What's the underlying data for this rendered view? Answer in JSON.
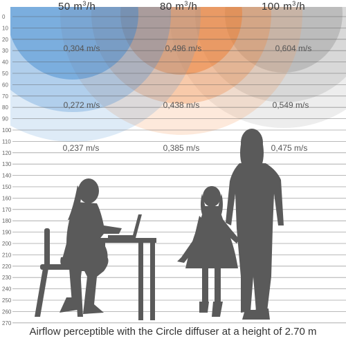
{
  "flow_rates": [
    {
      "value": "50 m",
      "unit_exp": "3",
      "suffix": "/h"
    },
    {
      "value": "80 m",
      "unit_exp": "3",
      "suffix": "/h"
    },
    {
      "value": "100 m",
      "unit_exp": "3",
      "suffix": "/h"
    }
  ],
  "colors": {
    "blue": "#3a84cf",
    "orange": "#f07b2a",
    "gray": "#8a8a8a",
    "lines": "#555555",
    "silhouette": "#5a5a5a"
  },
  "scale_ticks": [
    "0",
    "10",
    "20",
    "30",
    "40",
    "50",
    "60",
    "70",
    "80",
    "90",
    "100",
    "110",
    "120",
    "130",
    "140",
    "150",
    "160",
    "170",
    "180",
    "190",
    "200",
    "210",
    "220",
    "230",
    "240",
    "250",
    "260",
    "270"
  ],
  "velocities": [
    [
      "0,304 m/s",
      "0,496 m/s",
      "0,604 m/s"
    ],
    [
      "0,272 m/s",
      "0,438 m/s",
      "0,549 m/s"
    ],
    [
      "0,237 m/s",
      "0,385 m/s",
      "0,475 m/s"
    ]
  ],
  "caption": "Airflow perceptible with the Circle diffuser at a height of 2.70 m"
}
